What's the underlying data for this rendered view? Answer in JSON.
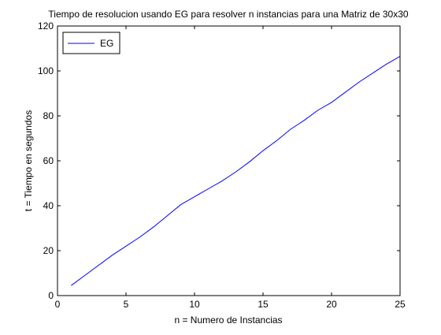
{
  "chart_data": {
    "type": "line",
    "title": "Tiempo de resolucion usando EG para resolver n instancias para una Matriz de 30x30",
    "xlabel": "n = Numero de Instancias",
    "ylabel": "t = Tiempo en segundos",
    "xlim": [
      0,
      25
    ],
    "ylim": [
      0,
      120
    ],
    "xticks": [
      0,
      5,
      10,
      15,
      20,
      25
    ],
    "yticks": [
      0,
      20,
      40,
      60,
      80,
      100,
      120
    ],
    "grid": false,
    "legend_position": "top-left",
    "series": [
      {
        "name": "EG",
        "color": "#0000ff",
        "x": [
          1,
          2,
          3,
          4,
          5,
          6,
          7,
          8,
          9,
          10,
          11,
          12,
          13,
          14,
          15,
          16,
          17,
          18,
          19,
          20,
          21,
          22,
          23,
          24,
          25
        ],
        "y": [
          4.5,
          9.0,
          13.5,
          18.0,
          22.0,
          26.0,
          30.5,
          35.5,
          40.5,
          44.0,
          47.5,
          51.0,
          55.0,
          59.5,
          64.5,
          69.0,
          74.0,
          78.0,
          82.5,
          86.0,
          90.5,
          95.0,
          99.0,
          103.0,
          106.5
        ]
      }
    ]
  }
}
